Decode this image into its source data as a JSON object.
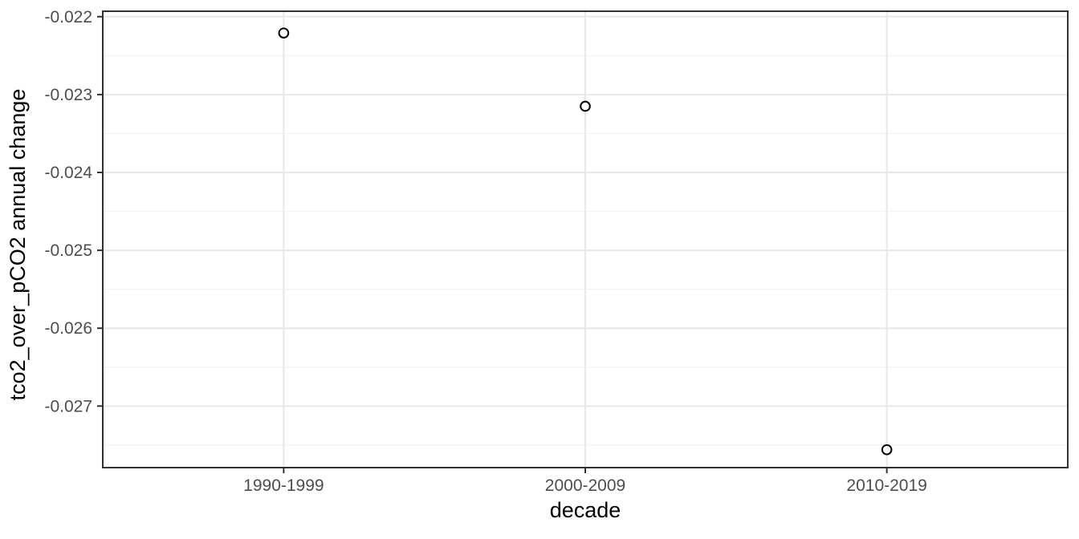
{
  "chart_data": {
    "type": "scatter",
    "xlabel": "decade",
    "ylabel": "tco2_over_pCO2 annual change",
    "categories": [
      "1990-1999",
      "2000-2009",
      "2010-2019"
    ],
    "values": [
      -0.02221,
      -0.02315,
      -0.02756
    ],
    "ylim": [
      -0.02779,
      -0.02193
    ],
    "y_major_ticks": [
      -0.022,
      -0.023,
      -0.024,
      -0.025,
      -0.026,
      -0.027
    ],
    "y_tick_labels": [
      "-0.022",
      "-0.023",
      "-0.024",
      "-0.025",
      "-0.026",
      "-0.027"
    ],
    "y_minor_ticks": [
      -0.0225,
      -0.0235,
      -0.0245,
      -0.0255,
      -0.0265,
      -0.0275
    ],
    "x_minor_ticks": [],
    "grid": "major-and-minor",
    "legend_position": "none",
    "point_style": "open-circle",
    "colors": {
      "point_stroke": "#000000",
      "point_fill": "#ffffff",
      "axis_text": "#4d4d4d",
      "axis_title": "#000000",
      "panel_border": "#333333",
      "tick_mark": "#333333",
      "grid_major": "#e8e8e8",
      "grid_minor": "#f2f2f2",
      "background": "#ffffff"
    }
  }
}
